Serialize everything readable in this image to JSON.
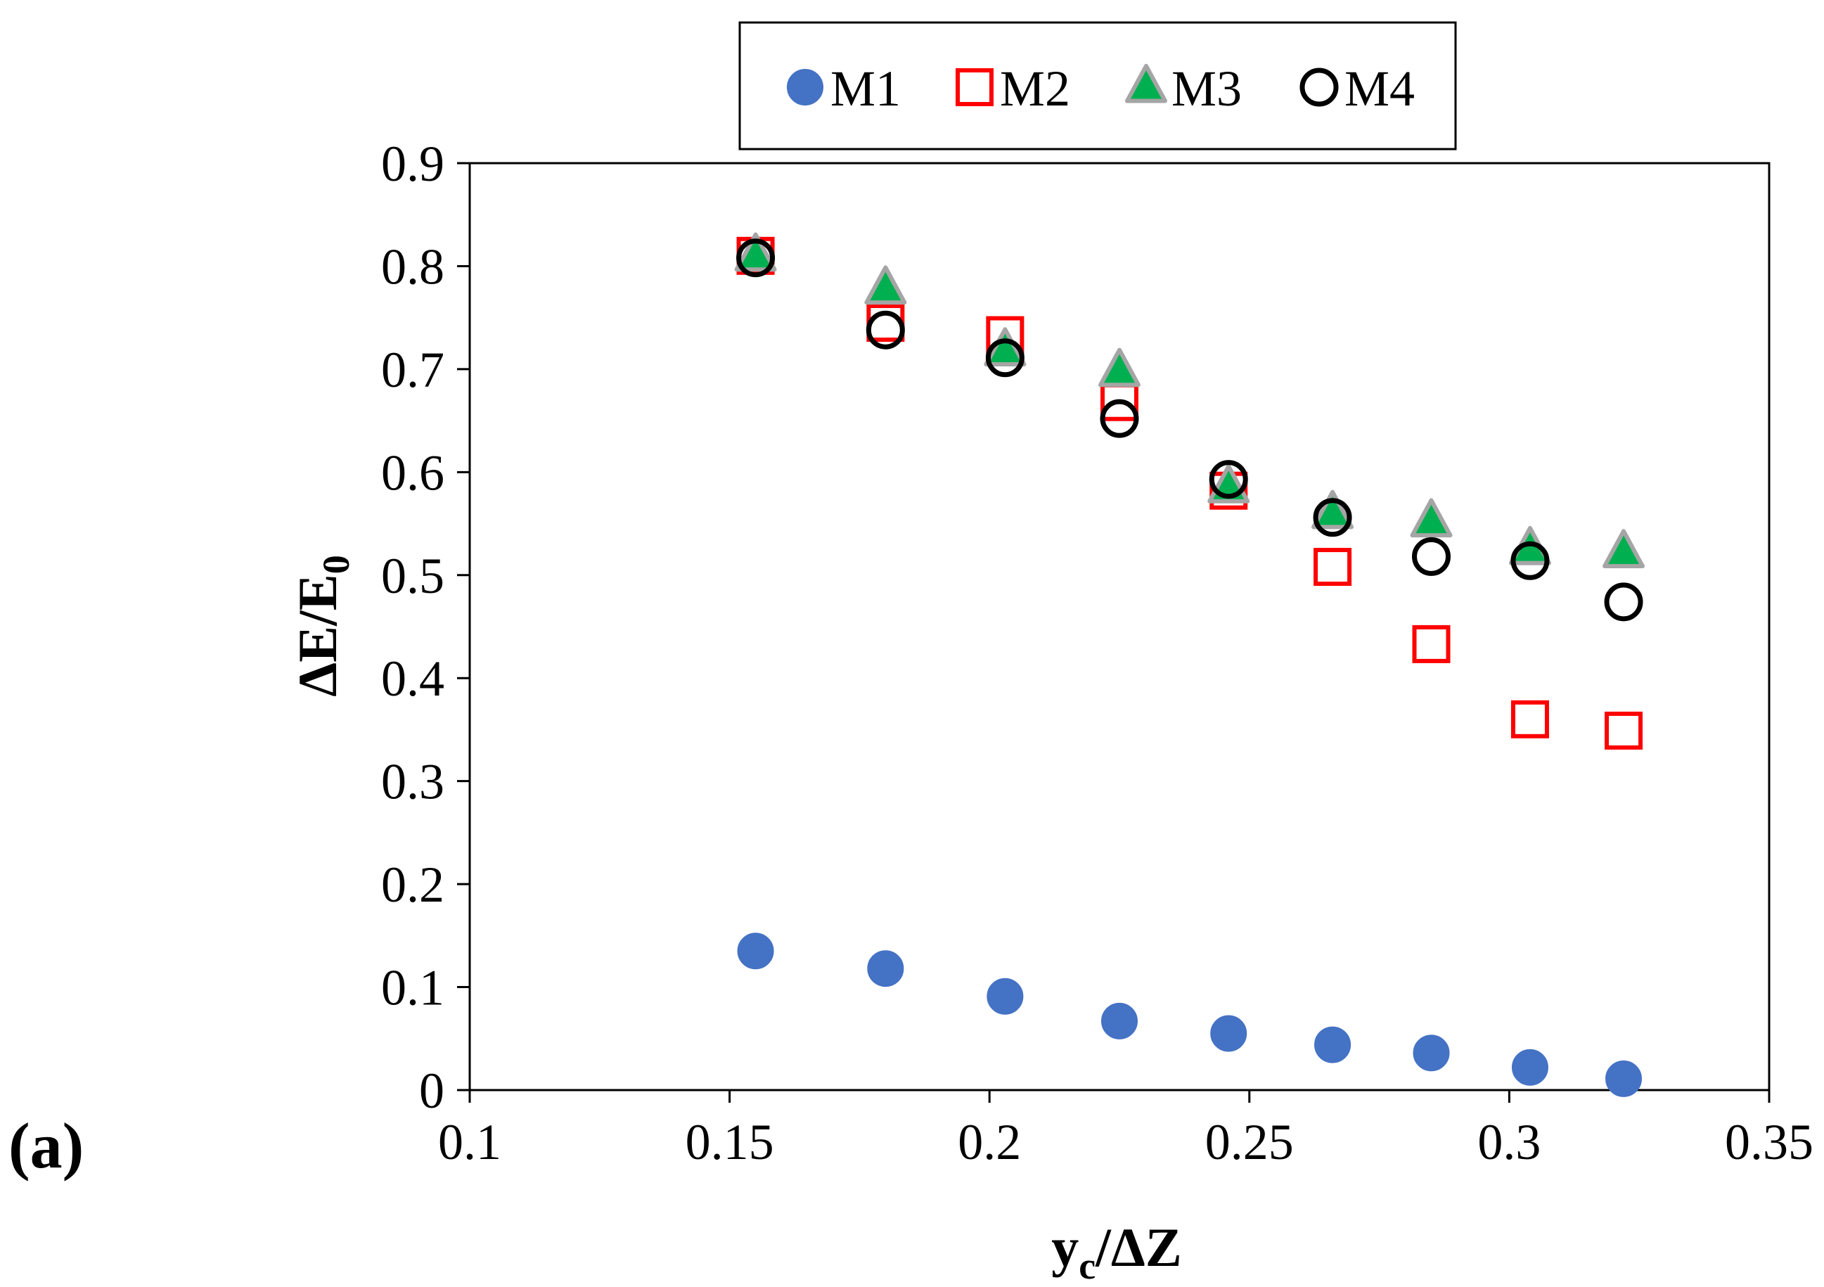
{
  "chart_data": {
    "type": "scatter",
    "title": "",
    "panel_label": "(a)",
    "xlabel": {
      "main": "y",
      "sub": "c",
      "rest": "/ΔZ"
    },
    "ylabel": {
      "main": "ΔE/E",
      "sub": "0"
    },
    "xlim": [
      0.1,
      0.35
    ],
    "ylim": [
      0,
      0.9
    ],
    "x_ticks": [
      0.1,
      0.15,
      0.2,
      0.25,
      0.3,
      0.35
    ],
    "x_tick_labels": [
      "0.1",
      "0.15",
      "0.2",
      "0.25",
      "0.3",
      "0.35"
    ],
    "y_ticks": [
      0,
      0.1,
      0.2,
      0.3,
      0.4,
      0.5,
      0.6,
      0.7,
      0.8,
      0.9
    ],
    "y_tick_labels": [
      "0",
      "0.1",
      "0.2",
      "0.3",
      "0.4",
      "0.5",
      "0.6",
      "0.7",
      "0.8",
      "0.9"
    ],
    "grid": false,
    "legend_position": "top-center",
    "x": [
      0.155,
      0.18,
      0.203,
      0.225,
      0.246,
      0.266,
      0.285,
      0.304,
      0.322
    ],
    "series": [
      {
        "name": "M1",
        "marker": "filled-circle",
        "color": "#4472C4",
        "values": [
          0.135,
          0.118,
          0.091,
          0.067,
          0.055,
          0.044,
          0.036,
          0.022,
          0.011
        ]
      },
      {
        "name": "M2",
        "marker": "open-square",
        "color": "#FF0000",
        "values": [
          0.81,
          0.745,
          0.733,
          0.668,
          0.582,
          0.508,
          0.433,
          0.36,
          0.349
        ]
      },
      {
        "name": "M3",
        "marker": "filled-triangle",
        "color": "#00B050",
        "edge_color": "#A5A5A5",
        "values": [
          0.81,
          0.778,
          0.718,
          0.698,
          0.585,
          0.56,
          0.552,
          0.525,
          0.522
        ]
      },
      {
        "name": "M4",
        "marker": "open-circle",
        "color": "#000000",
        "values": [
          0.808,
          0.738,
          0.711,
          0.652,
          0.593,
          0.556,
          0.518,
          0.514,
          0.474
        ]
      }
    ]
  }
}
